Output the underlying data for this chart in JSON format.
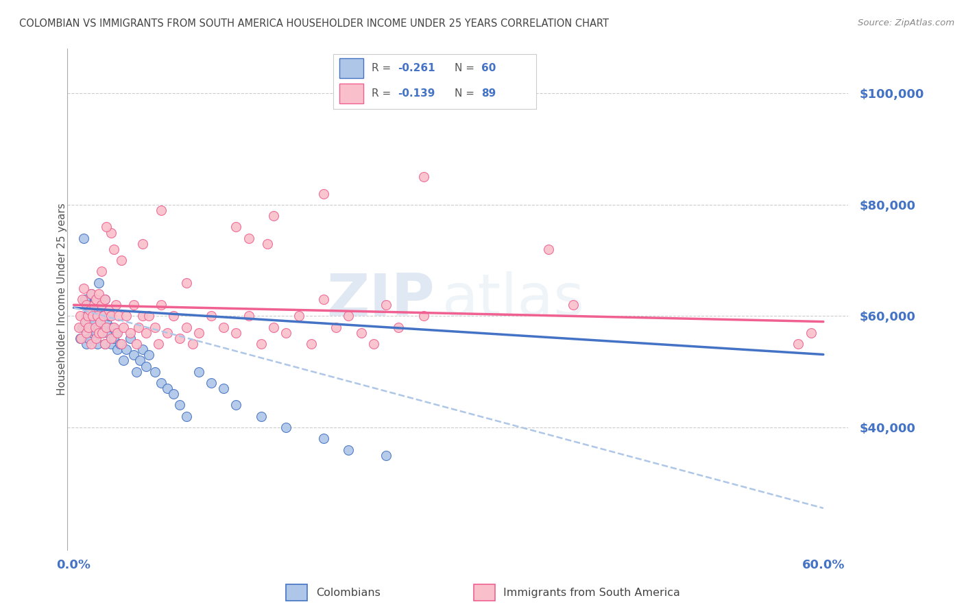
{
  "title": "COLOMBIAN VS IMMIGRANTS FROM SOUTH AMERICA HOUSEHOLDER INCOME UNDER 25 YEARS CORRELATION CHART",
  "source": "Source: ZipAtlas.com",
  "ylabel": "Householder Income Under 25 years",
  "xlim": [
    -0.005,
    0.62
  ],
  "ylim": [
    18000,
    108000
  ],
  "yticks": [
    40000,
    60000,
    80000,
    100000
  ],
  "ytick_labels": [
    "$40,000",
    "$60,000",
    "$80,000",
    "$100,000"
  ],
  "xtick_positions": [
    0.0,
    0.1,
    0.2,
    0.3,
    0.4,
    0.5,
    0.6
  ],
  "xtick_labels": [
    "0.0%",
    "",
    "",
    "",
    "",
    "",
    "60.0%"
  ],
  "legend_r1": "R = -0.261",
  "legend_n1": "N = 60",
  "legend_r2": "R = -0.139",
  "legend_n2": "N = 89",
  "colombians_label": "Colombians",
  "immigrants_label": "Immigrants from South America",
  "scatter_color_blue": "#aec6e8",
  "scatter_color_pink": "#f9c0cb",
  "line_color_blue": "#4472c4",
  "line_color_pink": "#f06090",
  "line_color_dashed": "#aec6e8",
  "title_color": "#444444",
  "axis_color": "#4472c4",
  "grid_color": "#cccccc",
  "background_color": "#ffffff",
  "watermark_zip": "ZIP",
  "watermark_atlas": "atlas",
  "blue_trend": [
    0.615,
    -14000
  ],
  "pink_trend": [
    0.62,
    -5000
  ],
  "dashed_trend": [
    0.615,
    -40000
  ],
  "blue_points_x": [
    0.005,
    0.007,
    0.008,
    0.009,
    0.01,
    0.01,
    0.01,
    0.012,
    0.013,
    0.014,
    0.015,
    0.015,
    0.015,
    0.016,
    0.017,
    0.018,
    0.018,
    0.019,
    0.02,
    0.02,
    0.021,
    0.022,
    0.023,
    0.023,
    0.024,
    0.025,
    0.025,
    0.026,
    0.027,
    0.028,
    0.03,
    0.031,
    0.032,
    0.034,
    0.035,
    0.037,
    0.04,
    0.042,
    0.045,
    0.048,
    0.05,
    0.053,
    0.055,
    0.058,
    0.06,
    0.065,
    0.07,
    0.075,
    0.08,
    0.085,
    0.09,
    0.1,
    0.11,
    0.12,
    0.13,
    0.15,
    0.17,
    0.2,
    0.22,
    0.25
  ],
  "blue_points_y": [
    56000,
    58000,
    74000,
    63000,
    59000,
    60000,
    55000,
    56000,
    58000,
    64000,
    57000,
    60000,
    62000,
    59000,
    63000,
    57000,
    61000,
    55000,
    58000,
    66000,
    59000,
    61000,
    57000,
    60000,
    58000,
    55000,
    63000,
    59000,
    57000,
    60000,
    55000,
    58000,
    56000,
    57000,
    54000,
    55000,
    52000,
    54000,
    56000,
    53000,
    50000,
    52000,
    54000,
    51000,
    53000,
    50000,
    48000,
    47000,
    46000,
    44000,
    42000,
    50000,
    48000,
    47000,
    44000,
    42000,
    40000,
    38000,
    36000,
    35000
  ],
  "pink_points_x": [
    0.004,
    0.005,
    0.006,
    0.007,
    0.008,
    0.009,
    0.01,
    0.01,
    0.011,
    0.012,
    0.013,
    0.014,
    0.014,
    0.015,
    0.016,
    0.017,
    0.018,
    0.018,
    0.019,
    0.02,
    0.02,
    0.021,
    0.022,
    0.023,
    0.024,
    0.025,
    0.025,
    0.026,
    0.028,
    0.03,
    0.03,
    0.032,
    0.034,
    0.035,
    0.036,
    0.038,
    0.04,
    0.042,
    0.045,
    0.048,
    0.05,
    0.052,
    0.055,
    0.058,
    0.06,
    0.065,
    0.068,
    0.07,
    0.075,
    0.08,
    0.085,
    0.09,
    0.095,
    0.1,
    0.11,
    0.12,
    0.13,
    0.14,
    0.15,
    0.16,
    0.17,
    0.18,
    0.19,
    0.2,
    0.21,
    0.22,
    0.23,
    0.24,
    0.25,
    0.26,
    0.28,
    0.03,
    0.055,
    0.07,
    0.09,
    0.13,
    0.155,
    0.022,
    0.026,
    0.032,
    0.038,
    0.14,
    0.16,
    0.2,
    0.28,
    0.38,
    0.4,
    0.58,
    0.59
  ],
  "pink_points_y": [
    58000,
    60000,
    56000,
    63000,
    65000,
    59000,
    57000,
    62000,
    60000,
    58000,
    61000,
    64000,
    55000,
    60000,
    62000,
    58000,
    63000,
    56000,
    60000,
    57000,
    64000,
    59000,
    62000,
    57000,
    60000,
    55000,
    63000,
    58000,
    61000,
    56000,
    60000,
    58000,
    62000,
    57000,
    60000,
    55000,
    58000,
    60000,
    57000,
    62000,
    55000,
    58000,
    60000,
    57000,
    60000,
    58000,
    55000,
    62000,
    57000,
    60000,
    56000,
    58000,
    55000,
    57000,
    60000,
    58000,
    57000,
    60000,
    55000,
    58000,
    57000,
    60000,
    55000,
    63000,
    58000,
    60000,
    57000,
    55000,
    62000,
    58000,
    60000,
    75000,
    73000,
    79000,
    66000,
    76000,
    73000,
    68000,
    76000,
    72000,
    70000,
    74000,
    78000,
    82000,
    85000,
    72000,
    62000,
    55000,
    57000
  ]
}
